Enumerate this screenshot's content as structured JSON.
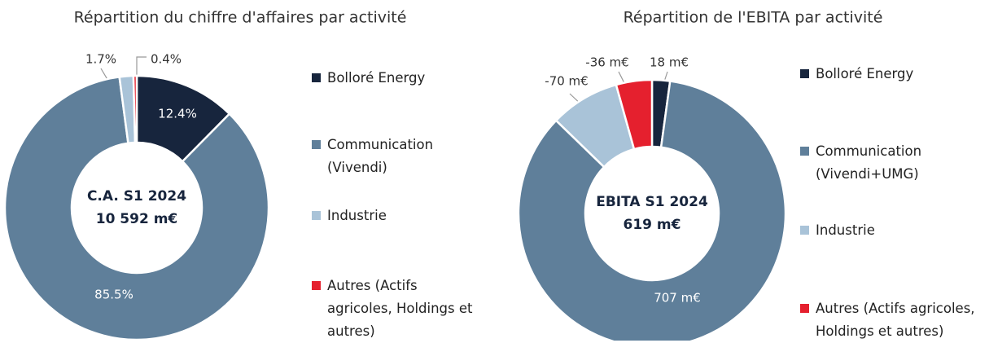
{
  "chart_data": [
    {
      "type": "pie",
      "donut": true,
      "title": "Répartition du chiffre d'affaires par activité",
      "center_text": [
        "C.A. S1 2024",
        "10 592 m€"
      ],
      "categories": [
        "Bolloré Energy",
        "Communication (Vivendi)",
        "Industrie",
        "Autres (Actifs agricoles, Holdings et autres)"
      ],
      "values": [
        12.4,
        85.5,
        1.7,
        0.4
      ],
      "value_labels": [
        "12.4%",
        "85.5%",
        "1.7%",
        "0.4%"
      ],
      "colors": [
        "#17253d",
        "#5f7f9a",
        "#a9c3d8",
        "#e5202e"
      ]
    },
    {
      "type": "pie",
      "donut": true,
      "title": "Répartition de l'EBITA par activité",
      "center_text": [
        "EBITA S1 2024",
        "619 m€"
      ],
      "categories": [
        "Bolloré Energy",
        "Communication (Vivendi+UMG)",
        "Industrie",
        "Autres (Actifs agricoles, Holdings et autres)"
      ],
      "values": [
        18,
        707,
        -70,
        -36
      ],
      "value_labels": [
        "18 m€",
        "707 m€",
        "-70 m€",
        "-36 m€"
      ],
      "colors": [
        "#17253d",
        "#5f7f9a",
        "#a9c3d8",
        "#e5202e"
      ]
    }
  ]
}
